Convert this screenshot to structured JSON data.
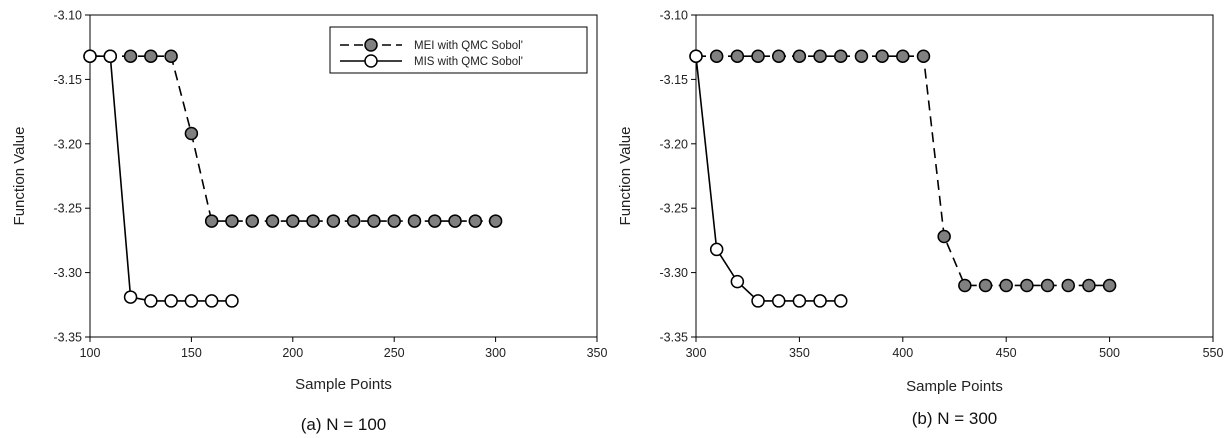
{
  "chart_data": [
    {
      "type": "line",
      "caption": "(a) N = 100",
      "xlabel": "Sample Points",
      "ylabel": "Function Value",
      "xlim": [
        100,
        350
      ],
      "ylim": [
        -3.35,
        -3.1
      ],
      "xticks": [
        "100",
        "150",
        "200",
        "250",
        "300",
        "350"
      ],
      "yticks": [
        "-3.10",
        "-3.15",
        "-3.20",
        "-3.25",
        "-3.30",
        "-3.35"
      ],
      "legend": {
        "position": "top-right"
      },
      "series": [
        {
          "name": "MEI with QMC Sobol'",
          "style": "dashed",
          "marker_fill": "#808080",
          "x": [
            100,
            110,
            120,
            130,
            140,
            150,
            160,
            170,
            180,
            190,
            200,
            210,
            220,
            230,
            240,
            250,
            260,
            270,
            280,
            290,
            300
          ],
          "y": [
            -3.132,
            -3.132,
            -3.132,
            -3.132,
            -3.132,
            -3.192,
            -3.26,
            -3.26,
            -3.26,
            -3.26,
            -3.26,
            -3.26,
            -3.26,
            -3.26,
            -3.26,
            -3.26,
            -3.26,
            -3.26,
            -3.26,
            -3.26,
            -3.26
          ]
        },
        {
          "name": "MIS with QMC Sobol'",
          "style": "solid",
          "marker_fill": "#ffffff",
          "x": [
            100,
            110,
            120,
            130,
            140,
            150,
            160,
            170
          ],
          "y": [
            -3.132,
            -3.132,
            -3.319,
            -3.322,
            -3.322,
            -3.322,
            -3.322,
            -3.322
          ]
        }
      ]
    },
    {
      "type": "line",
      "caption": "(b) N = 300",
      "xlabel": "Sample Points",
      "ylabel": "Function Value",
      "xlim": [
        300,
        550
      ],
      "ylim": [
        -3.35,
        -3.1
      ],
      "xticks": [
        "300",
        "350",
        "400",
        "450",
        "500",
        "550"
      ],
      "yticks": [
        "-3.10",
        "-3.15",
        "-3.20",
        "-3.25",
        "-3.30",
        "-3.35"
      ],
      "series": [
        {
          "name": "MEI with QMC Sobol'",
          "style": "dashed",
          "marker_fill": "#808080",
          "x": [
            300,
            310,
            320,
            330,
            340,
            350,
            360,
            370,
            380,
            390,
            400,
            410,
            420,
            430,
            440,
            450,
            460,
            470,
            480,
            490,
            500
          ],
          "y": [
            -3.132,
            -3.132,
            -3.132,
            -3.132,
            -3.132,
            -3.132,
            -3.132,
            -3.132,
            -3.132,
            -3.132,
            -3.132,
            -3.132,
            -3.272,
            -3.31,
            -3.31,
            -3.31,
            -3.31,
            -3.31,
            -3.31,
            -3.31,
            -3.31
          ]
        },
        {
          "name": "MIS with QMC Sobol'",
          "style": "solid",
          "marker_fill": "#ffffff",
          "x": [
            300,
            310,
            320,
            330,
            340,
            350,
            360,
            370
          ],
          "y": [
            -3.132,
            -3.282,
            -3.307,
            -3.322,
            -3.322,
            -3.322,
            -3.322,
            -3.322
          ]
        }
      ]
    }
  ]
}
